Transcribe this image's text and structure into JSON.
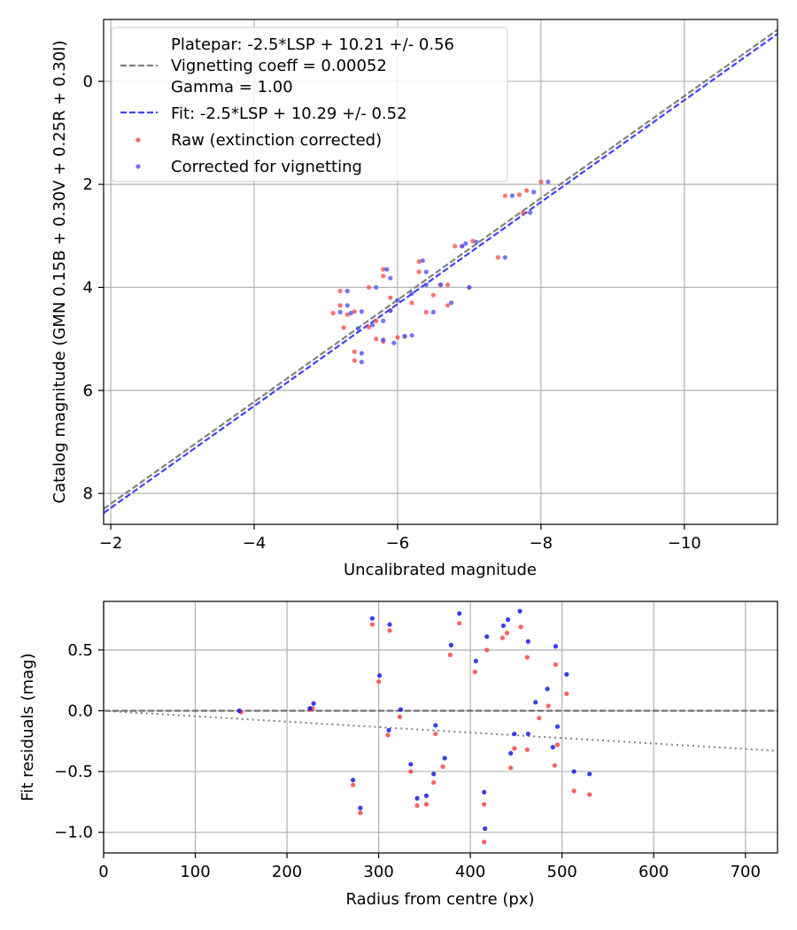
{
  "chart_data": [
    {
      "type": "scatter",
      "xlabel": "Uncalibrated magnitude",
      "ylabel": "Catalog magnitude (GMN 0.15B + 0.30V + 0.25R + 0.30I)",
      "xlim": [
        -1.9,
        -11.3
      ],
      "ylim": [
        8.6,
        -1.2
      ],
      "x_ticks": [
        -2,
        -4,
        -6,
        -8,
        -10
      ],
      "x_tick_labels": [
        "−2",
        "−4",
        "−6",
        "−8",
        "−10"
      ],
      "y_ticks": [
        0,
        2,
        4,
        6,
        8
      ],
      "y_tick_labels": [
        "0",
        "2",
        "4",
        "6",
        "8"
      ],
      "grid": true,
      "legend_location": "upper-left",
      "lines": [
        {
          "name": "platepar",
          "label": "Platepar: -2.5*LSP + 10.21 +/- 0.56",
          "style": "dashed",
          "color": "#808080",
          "x": [
            -1.9,
            -11.3
          ],
          "y": [
            8.3,
            -1.0
          ]
        },
        {
          "name": "fit",
          "label": "Fit: -2.5*LSP + 10.29 +/- 0.52",
          "style": "dashed",
          "color": "#4040ff",
          "x": [
            -1.9,
            -11.3
          ],
          "y": [
            8.38,
            -0.92
          ]
        }
      ],
      "legend_extra_lines": [
        "Vignetting coeff = 0.00052",
        "Gamma = 1.00"
      ],
      "series": [
        {
          "name": "Raw (extinction corrected)",
          "color": "#ff4444",
          "points": [
            [
              -5.1,
              4.5
            ],
            [
              -5.2,
              4.07
            ],
            [
              -5.3,
              4.53
            ],
            [
              -5.2,
              4.35
            ],
            [
              -5.25,
              4.78
            ],
            [
              -5.4,
              5.25
            ],
            [
              -5.4,
              5.42
            ],
            [
              -5.4,
              4.47
            ],
            [
              -5.6,
              4.77
            ],
            [
              -5.6,
              4.0
            ],
            [
              -5.7,
              4.65
            ],
            [
              -5.7,
              5.0
            ],
            [
              -5.8,
              3.65
            ],
            [
              -5.8,
              3.78
            ],
            [
              -5.8,
              5.05
            ],
            [
              -5.9,
              4.45
            ],
            [
              -5.9,
              4.2
            ],
            [
              -6.0,
              4.97
            ],
            [
              -6.1,
              4.95
            ],
            [
              -6.2,
              4.3
            ],
            [
              -6.3,
              3.5
            ],
            [
              -6.4,
              4.48
            ],
            [
              -6.3,
              3.7
            ],
            [
              -6.5,
              4.15
            ],
            [
              -6.6,
              3.95
            ],
            [
              -6.7,
              4.35
            ],
            [
              -6.7,
              3.95
            ],
            [
              -6.8,
              3.2
            ],
            [
              -6.9,
              3.2
            ],
            [
              -7.05,
              3.1
            ],
            [
              -7.0,
              4.0
            ],
            [
              -7.4,
              3.42
            ],
            [
              -7.5,
              2.22
            ],
            [
              -7.7,
              2.2
            ],
            [
              -7.8,
              2.12
            ],
            [
              -7.75,
              2.55
            ],
            [
              -8.0,
              1.95
            ]
          ]
        },
        {
          "name": "Corrected for vignetting",
          "color": "#4848f0",
          "points": [
            [
              -5.2,
              4.48
            ],
            [
              -5.3,
              4.07
            ],
            [
              -5.35,
              4.5
            ],
            [
              -5.3,
              4.35
            ],
            [
              -5.45,
              4.8
            ],
            [
              -5.5,
              5.28
            ],
            [
              -5.5,
              5.45
            ],
            [
              -5.5,
              4.47
            ],
            [
              -5.65,
              4.73
            ],
            [
              -5.7,
              4.0
            ],
            [
              -5.8,
              4.65
            ],
            [
              -5.8,
              5.02
            ],
            [
              -5.85,
              3.65
            ],
            [
              -5.9,
              3.82
            ],
            [
              -5.95,
              5.08
            ],
            [
              -5.9,
              4.45
            ],
            [
              -6.0,
              4.25
            ],
            [
              -6.1,
              4.95
            ],
            [
              -6.2,
              4.93
            ],
            [
              -6.2,
              4.12
            ],
            [
              -6.35,
              3.48
            ],
            [
              -6.5,
              4.48
            ],
            [
              -6.4,
              3.7
            ],
            [
              -6.4,
              3.95
            ],
            [
              -6.6,
              3.95
            ],
            [
              -6.75,
              4.3
            ],
            [
              -7.0,
              4.0
            ],
            [
              -6.9,
              3.2
            ],
            [
              -6.95,
              3.15
            ],
            [
              -7.1,
              3.12
            ],
            [
              -7.5,
              3.42
            ],
            [
              -7.6,
              2.22
            ],
            [
              -7.85,
              2.55
            ],
            [
              -7.9,
              2.15
            ],
            [
              -8.1,
              1.95
            ]
          ]
        }
      ]
    },
    {
      "type": "scatter",
      "xlabel": "Radius from centre (px)",
      "ylabel": "Fit residuals (mag)",
      "xlim": [
        0,
        735
      ],
      "ylim": [
        -1.17,
        0.9
      ],
      "x_ticks": [
        0,
        100,
        200,
        300,
        400,
        500,
        600,
        700
      ],
      "x_tick_labels": [
        "0",
        "100",
        "200",
        "300",
        "400",
        "500",
        "600",
        "700"
      ],
      "y_ticks": [
        0.5,
        0.0,
        -0.5,
        -1.0
      ],
      "y_tick_labels": [
        "0.5",
        "0.0",
        "−0.5",
        "−1.0"
      ],
      "grid": true,
      "lines": [
        {
          "name": "zero-line",
          "style": "dashed",
          "color": "#606060",
          "x": [
            0,
            735
          ],
          "y": [
            0,
            0
          ]
        },
        {
          "name": "vignetting-trend",
          "style": "dotted",
          "color": "#808080",
          "x": [
            0,
            735
          ],
          "y": [
            0,
            -0.33
          ]
        }
      ],
      "series": [
        {
          "name": "Raw",
          "color": "#ff4444",
          "points": [
            [
              150,
              -0.01
            ],
            [
              225,
              0.01
            ],
            [
              228,
              0.02
            ],
            [
              272,
              -0.61
            ],
            [
              280,
              -0.84
            ],
            [
              293,
              0.71
            ],
            [
              300,
              0.24
            ],
            [
              310,
              -0.2
            ],
            [
              312,
              0.66
            ],
            [
              323,
              -0.05
            ],
            [
              335,
              -0.5
            ],
            [
              342,
              -0.78
            ],
            [
              352,
              -0.77
            ],
            [
              360,
              -0.59
            ],
            [
              362,
              -0.19
            ],
            [
              370,
              -0.46
            ],
            [
              378,
              0.46
            ],
            [
              388,
              0.72
            ],
            [
              405,
              0.32
            ],
            [
              415,
              -0.77
            ],
            [
              415,
              -1.08
            ],
            [
              418,
              0.5
            ],
            [
              435,
              0.6
            ],
            [
              440,
              0.64
            ],
            [
              444,
              -0.47
            ],
            [
              448,
              -0.31
            ],
            [
              455,
              0.69
            ],
            [
              462,
              -0.32
            ],
            [
              462,
              0.44
            ],
            [
              475,
              -0.06
            ],
            [
              485,
              0.04
            ],
            [
              492,
              -0.45
            ],
            [
              493,
              0.38
            ],
            [
              495,
              -0.28
            ],
            [
              505,
              0.14
            ],
            [
              513,
              -0.66
            ],
            [
              530,
              -0.69
            ]
          ]
        },
        {
          "name": "Corrected",
          "color": "#1a1ae6",
          "points": [
            [
              148,
              0.0
            ],
            [
              225,
              0.02
            ],
            [
              229,
              0.06
            ],
            [
              272,
              -0.57
            ],
            [
              280,
              -0.8
            ],
            [
              293,
              0.76
            ],
            [
              301,
              0.29
            ],
            [
              311,
              -0.16
            ],
            [
              312,
              0.71
            ],
            [
              324,
              0.01
            ],
            [
              335,
              -0.44
            ],
            [
              342,
              -0.72
            ],
            [
              352,
              -0.7
            ],
            [
              360,
              -0.52
            ],
            [
              362,
              -0.12
            ],
            [
              372,
              -0.39
            ],
            [
              379,
              0.54
            ],
            [
              388,
              0.8
            ],
            [
              406,
              0.41
            ],
            [
              415,
              -0.67
            ],
            [
              416,
              -0.97
            ],
            [
              418,
              0.61
            ],
            [
              436,
              0.7
            ],
            [
              441,
              0.75
            ],
            [
              444,
              -0.35
            ],
            [
              448,
              -0.19
            ],
            [
              454,
              0.82
            ],
            [
              463,
              -0.19
            ],
            [
              463,
              0.57
            ],
            [
              471,
              0.07
            ],
            [
              484,
              0.18
            ],
            [
              490,
              -0.3
            ],
            [
              493,
              0.53
            ],
            [
              495,
              -0.13
            ],
            [
              505,
              0.3
            ],
            [
              513,
              -0.5
            ],
            [
              530,
              -0.52
            ]
          ]
        }
      ]
    }
  ]
}
